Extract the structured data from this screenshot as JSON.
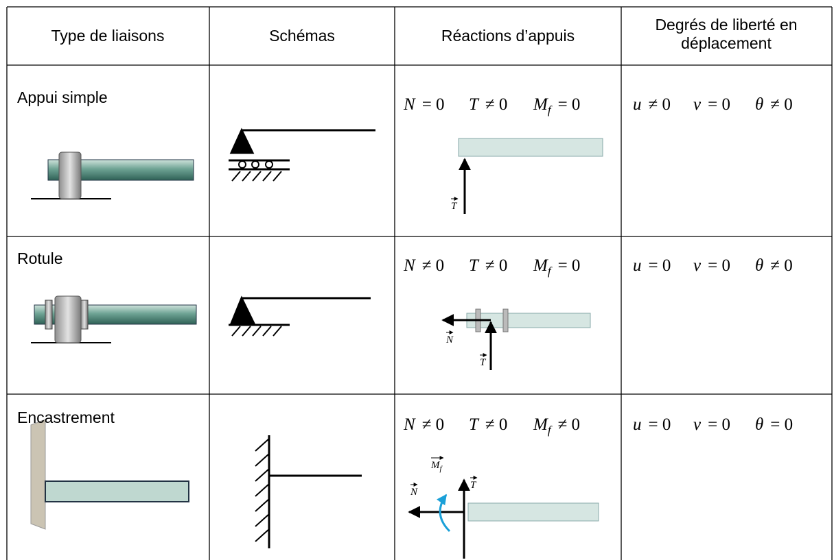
{
  "table": {
    "header": [
      "Type de liaisons",
      "Schémas",
      "Réactions d’appuis",
      [
        "Degrés de liberté en",
        "déplacement"
      ]
    ],
    "rows": [
      {
        "name": "Appui simple",
        "reactions": [
          {
            "sym": "N",
            "rel": "= 0"
          },
          {
            "sym": "T",
            "rel": "≠ 0"
          },
          {
            "sym": "M",
            "sub": "f",
            "rel": "= 0"
          }
        ],
        "dof": [
          {
            "sym": "u",
            "rel": "≠ 0"
          },
          {
            "sym": "v",
            "rel": "= 0"
          },
          {
            "sym": "θ",
            "rel": "≠ 0"
          }
        ],
        "vectors": [
          {
            "sym": "T"
          }
        ]
      },
      {
        "name": "Rotule",
        "reactions": [
          {
            "sym": "N",
            "rel": "≠ 0"
          },
          {
            "sym": "T",
            "rel": "≠ 0"
          },
          {
            "sym": "M",
            "sub": "f",
            "rel": "= 0"
          }
        ],
        "dof": [
          {
            "sym": "u",
            "rel": "= 0"
          },
          {
            "sym": "v",
            "rel": "= 0"
          },
          {
            "sym": "θ",
            "rel": "≠ 0"
          }
        ],
        "vectors": [
          {
            "sym": "N"
          },
          {
            "sym": "T"
          }
        ]
      },
      {
        "name": "Encastrement",
        "reactions": [
          {
            "sym": "N",
            "rel": "≠ 0"
          },
          {
            "sym": "T",
            "rel": "≠ 0"
          },
          {
            "sym": "M",
            "sub": "f",
            "rel": "≠ 0"
          }
        ],
        "dof": [
          {
            "sym": "u",
            "rel": "= 0"
          },
          {
            "sym": "v",
            "rel": "= 0"
          },
          {
            "sym": "θ",
            "rel": "= 0"
          }
        ],
        "vectors": [
          {
            "sym": "N"
          },
          {
            "sym": "M",
            "sub": "f"
          },
          {
            "sym": "T"
          }
        ]
      }
    ]
  }
}
